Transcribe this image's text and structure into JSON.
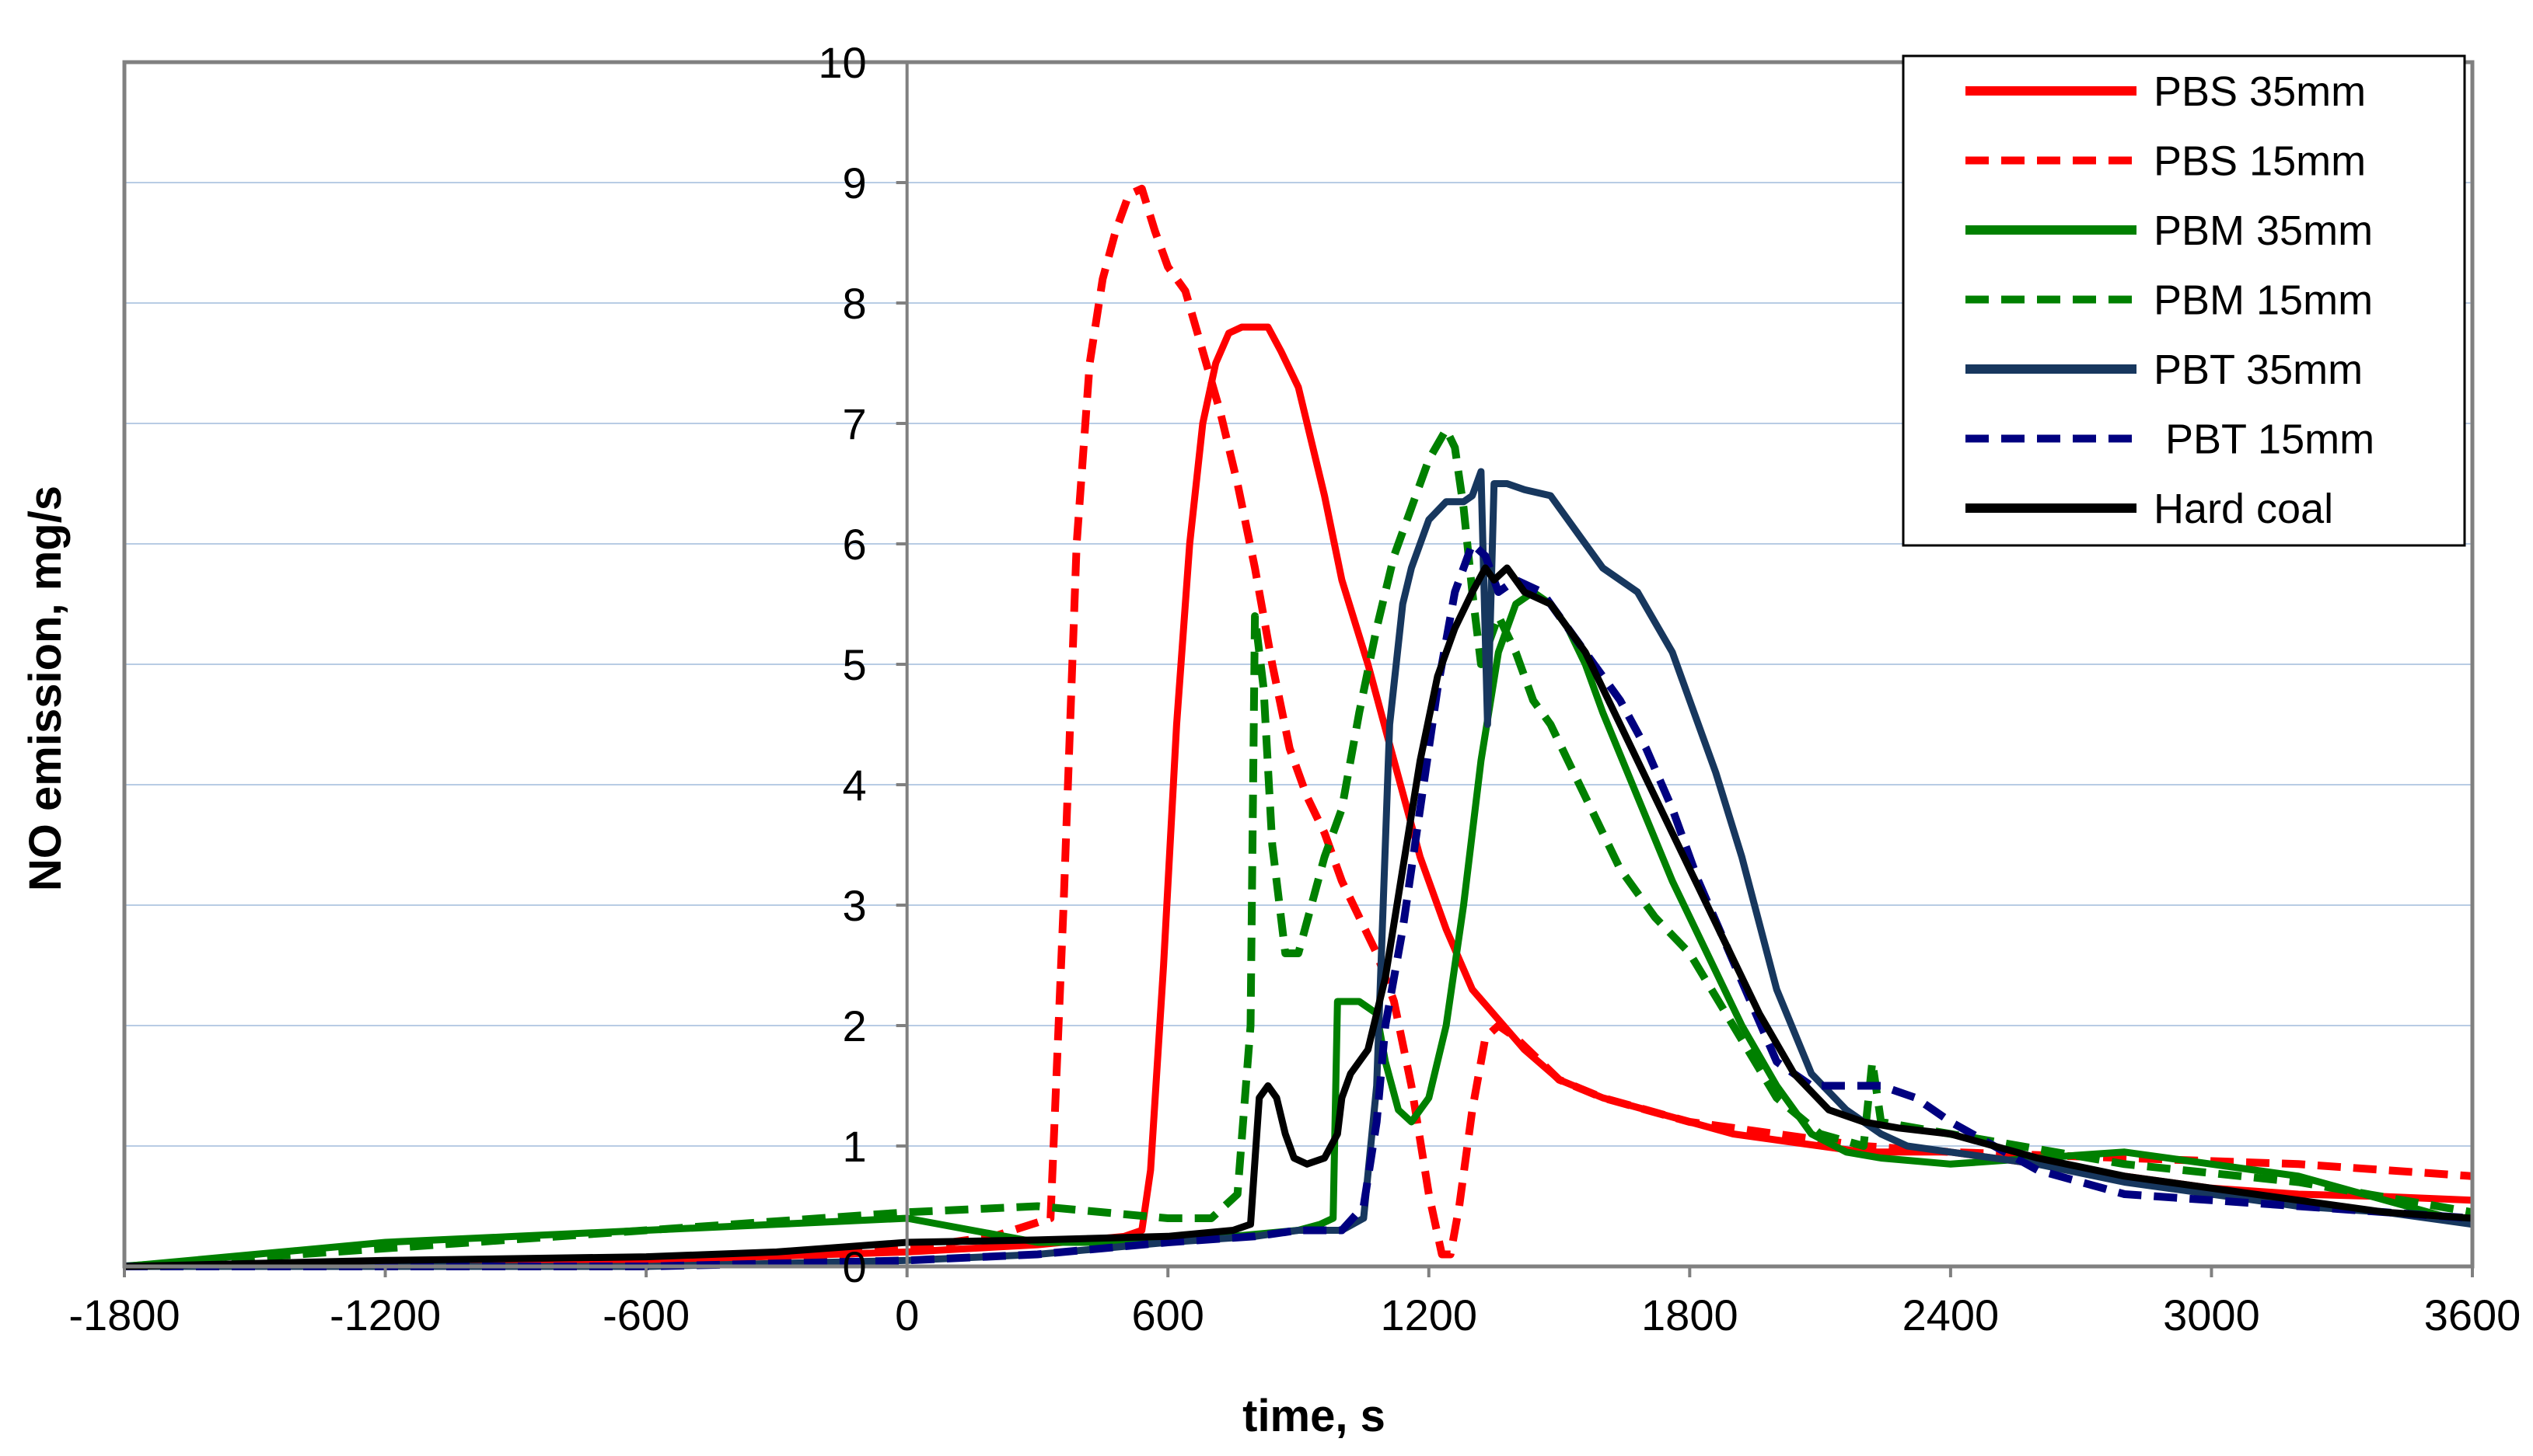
{
  "chart_data": {
    "type": "line",
    "title": "",
    "xlabel": "time, s",
    "ylabel": "NO emission, mg/s",
    "xlim": [
      -1800,
      3600
    ],
    "ylim": [
      0,
      10
    ],
    "xticks": [
      -1800,
      -1200,
      -600,
      0,
      600,
      1200,
      1800,
      2400,
      3000,
      3600
    ],
    "yticks": [
      0,
      1,
      2,
      3,
      4,
      5,
      6,
      7,
      8,
      9,
      10
    ],
    "grid": "horizontal",
    "legend_position": "top-right",
    "series": [
      {
        "name": "PBS 35mm",
        "color": "#ff0000",
        "dash": "solid",
        "x": [
          -1800,
          -1200,
          -600,
          0,
          300,
          500,
          540,
          560,
          590,
          620,
          650,
          680,
          710,
          740,
          770,
          800,
          830,
          860,
          900,
          960,
          1000,
          1060,
          1120,
          1180,
          1240,
          1300,
          1360,
          1420,
          1500,
          1600,
          1700,
          1800,
          1900,
          2000,
          2100,
          2200,
          2300,
          2400,
          2600,
          2800,
          3000,
          3200,
          3400,
          3600
        ],
        "y": [
          0.0,
          0.02,
          0.05,
          0.12,
          0.18,
          0.25,
          0.3,
          0.8,
          2.5,
          4.5,
          6.0,
          7.0,
          7.5,
          7.75,
          7.8,
          7.8,
          7.8,
          7.6,
          7.3,
          6.4,
          5.7,
          5.0,
          4.2,
          3.4,
          2.8,
          2.3,
          2.05,
          1.8,
          1.55,
          1.4,
          1.3,
          1.2,
          1.1,
          1.05,
          1.0,
          0.95,
          0.95,
          0.95,
          0.85,
          0.75,
          0.65,
          0.6,
          0.58,
          0.55
        ]
      },
      {
        "name": "PBS 15mm",
        "color": "#ff0000",
        "dash": "dashed",
        "x": [
          -1800,
          -1200,
          -600,
          -300,
          0,
          200,
          330,
          360,
          390,
          420,
          450,
          480,
          510,
          540,
          570,
          600,
          640,
          680,
          720,
          760,
          800,
          840,
          880,
          920,
          960,
          1000,
          1040,
          1080,
          1120,
          1160,
          1200,
          1230,
          1250,
          1270,
          1300,
          1330,
          1360,
          1400,
          1500,
          1600,
          1700,
          1800,
          2000,
          2200,
          2400,
          2800,
          3200,
          3600
        ],
        "y": [
          0.0,
          0.0,
          0.0,
          0.05,
          0.15,
          0.25,
          0.4,
          3.0,
          6.0,
          7.5,
          8.2,
          8.6,
          8.9,
          8.95,
          8.6,
          8.3,
          8.1,
          7.6,
          7.1,
          6.5,
          5.8,
          5.0,
          4.3,
          3.9,
          3.6,
          3.2,
          2.9,
          2.6,
          2.2,
          1.5,
          0.6,
          0.1,
          0.1,
          0.5,
          1.3,
          1.9,
          2.0,
          1.9,
          1.55,
          1.4,
          1.3,
          1.2,
          1.1,
          1.0,
          0.95,
          0.9,
          0.85,
          0.75
        ]
      },
      {
        "name": "PBM 35mm",
        "color": "#008000",
        "dash": "solid",
        "x": [
          -1800,
          -1500,
          -1200,
          -900,
          -600,
          -300,
          0,
          300,
          600,
          900,
          950,
          980,
          990,
          1010,
          1040,
          1080,
          1100,
          1130,
          1160,
          1200,
          1240,
          1280,
          1320,
          1360,
          1400,
          1440,
          1480,
          1520,
          1560,
          1600,
          1680,
          1760,
          1840,
          1920,
          2000,
          2080,
          2160,
          2240,
          2400,
          2600,
          2800,
          3000,
          3200,
          3400,
          3600
        ],
        "y": [
          0.0,
          0.1,
          0.2,
          0.25,
          0.3,
          0.35,
          0.4,
          0.2,
          0.2,
          0.3,
          0.35,
          0.4,
          2.2,
          2.2,
          2.2,
          2.1,
          1.7,
          1.3,
          1.2,
          1.4,
          2.0,
          3.0,
          4.2,
          5.1,
          5.5,
          5.6,
          5.5,
          5.3,
          5.0,
          4.6,
          3.9,
          3.2,
          2.6,
          2.0,
          1.5,
          1.1,
          0.95,
          0.9,
          0.85,
          0.9,
          0.95,
          0.85,
          0.75,
          0.55,
          0.35
        ]
      },
      {
        "name": "PBM 15mm",
        "color": "#008000",
        "dash": "dashed",
        "x": [
          -1800,
          -1200,
          -600,
          0,
          300,
          600,
          700,
          760,
          790,
          800,
          820,
          840,
          870,
          900,
          930,
          960,
          1000,
          1040,
          1080,
          1120,
          1160,
          1200,
          1240,
          1260,
          1280,
          1300,
          1320,
          1340,
          1360,
          1400,
          1440,
          1480,
          1520,
          1560,
          1640,
          1720,
          1800,
          1900,
          2000,
          2100,
          2200,
          2220,
          2240,
          2400,
          2800,
          3200,
          3600
        ],
        "y": [
          0.0,
          0.15,
          0.3,
          0.45,
          0.5,
          0.4,
          0.4,
          0.6,
          2.0,
          5.4,
          4.8,
          3.5,
          2.6,
          2.6,
          3.0,
          3.4,
          3.8,
          4.6,
          5.3,
          5.9,
          6.3,
          6.7,
          6.95,
          6.8,
          6.3,
          5.6,
          5.0,
          5.2,
          5.4,
          5.1,
          4.7,
          4.5,
          4.2,
          3.9,
          3.3,
          2.9,
          2.6,
          2.0,
          1.4,
          1.1,
          1.0,
          1.7,
          1.2,
          1.1,
          0.85,
          0.7,
          0.45
        ]
      },
      {
        "name": "PBT 35mm",
        "color": "#17375e",
        "dash": "solid",
        "x": [
          -1800,
          -1200,
          -600,
          0,
          300,
          600,
          800,
          900,
          1000,
          1050,
          1080,
          1110,
          1140,
          1160,
          1200,
          1240,
          1280,
          1300,
          1320,
          1335,
          1350,
          1380,
          1420,
          1480,
          1540,
          1600,
          1680,
          1760,
          1800,
          1860,
          1920,
          2000,
          2080,
          2160,
          2240,
          2300,
          2400,
          2600,
          2800,
          3000,
          3200,
          3400,
          3600
        ],
        "y": [
          0.0,
          0.0,
          0.0,
          0.05,
          0.1,
          0.2,
          0.25,
          0.3,
          0.3,
          0.4,
          1.5,
          4.5,
          5.5,
          5.8,
          6.2,
          6.35,
          6.35,
          6.4,
          6.6,
          4.5,
          6.5,
          6.5,
          6.45,
          6.4,
          6.1,
          5.8,
          5.6,
          5.1,
          4.7,
          4.1,
          3.4,
          2.3,
          1.6,
          1.3,
          1.1,
          1.0,
          0.95,
          0.85,
          0.7,
          0.6,
          0.5,
          0.45,
          0.35
        ]
      },
      {
        "name": " PBT 15mm",
        "color": "#000080",
        "dash": "dashed",
        "x": [
          -1800,
          -1200,
          -600,
          0,
          300,
          600,
          800,
          900,
          1000,
          1050,
          1080,
          1100,
          1140,
          1180,
          1220,
          1260,
          1300,
          1330,
          1360,
          1400,
          1460,
          1520,
          1580,
          1640,
          1700,
          1760,
          1820,
          1880,
          1940,
          2000,
          2080,
          2160,
          2240,
          2320,
          2400,
          2600,
          2800,
          3000,
          3200,
          3400,
          3600
        ],
        "y": [
          0.0,
          0.0,
          0.0,
          0.05,
          0.1,
          0.2,
          0.25,
          0.3,
          0.3,
          0.5,
          1.2,
          2.0,
          2.8,
          3.8,
          4.8,
          5.6,
          6.0,
          5.9,
          5.6,
          5.7,
          5.6,
          5.3,
          5.0,
          4.7,
          4.3,
          3.8,
          3.2,
          2.7,
          2.2,
          1.7,
          1.5,
          1.5,
          1.5,
          1.4,
          1.2,
          0.8,
          0.6,
          0.55,
          0.5,
          0.45,
          0.4
        ]
      },
      {
        "name": "Hard coal",
        "color": "#000000",
        "dash": "solid",
        "x": [
          -1800,
          -1200,
          -600,
          -300,
          0,
          300,
          600,
          750,
          790,
          810,
          830,
          850,
          870,
          890,
          920,
          960,
          990,
          1000,
          1020,
          1060,
          1100,
          1140,
          1180,
          1220,
          1260,
          1300,
          1330,
          1350,
          1380,
          1420,
          1480,
          1560,
          1640,
          1720,
          1800,
          1880,
          1960,
          2040,
          2120,
          2200,
          2280,
          2400,
          2600,
          2800,
          3000,
          3200,
          3400,
          3600
        ],
        "y": [
          0.0,
          0.05,
          0.08,
          0.12,
          0.2,
          0.22,
          0.25,
          0.3,
          0.35,
          1.4,
          1.5,
          1.4,
          1.1,
          0.9,
          0.85,
          0.9,
          1.1,
          1.4,
          1.6,
          1.8,
          2.4,
          3.3,
          4.2,
          4.9,
          5.3,
          5.6,
          5.8,
          5.7,
          5.8,
          5.6,
          5.5,
          5.1,
          4.5,
          3.9,
          3.3,
          2.7,
          2.1,
          1.6,
          1.3,
          1.2,
          1.15,
          1.1,
          0.9,
          0.75,
          0.65,
          0.55,
          0.45,
          0.4
        ]
      }
    ]
  }
}
